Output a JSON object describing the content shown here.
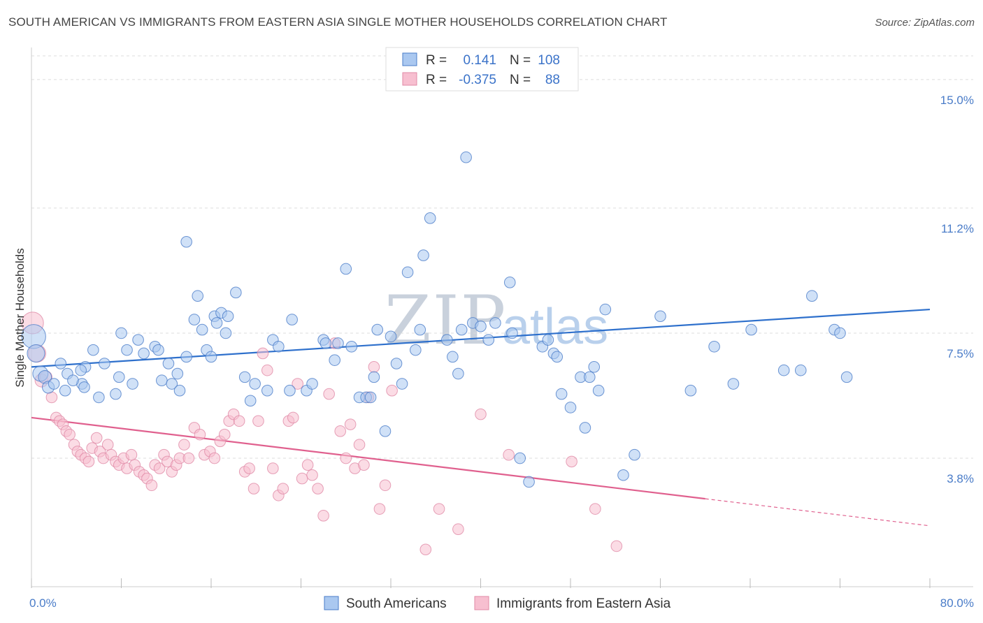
{
  "header": {
    "title": "SOUTH AMERICAN VS IMMIGRANTS FROM EASTERN ASIA SINGLE MOTHER HOUSEHOLDS CORRELATION CHART",
    "source": "Source: ZipAtlas.com"
  },
  "watermark": {
    "part1": "ZIP",
    "part2": "atlas"
  },
  "legend": {
    "r_label": "R =",
    "n_label": "N =",
    "rows": [
      {
        "r": "0.141",
        "n": "108"
      },
      {
        "r": "-0.375",
        "n": "88"
      }
    ]
  },
  "chart_data": {
    "type": "scatter",
    "title": "SOUTH AMERICAN VS IMMIGRANTS FROM EASTERN ASIA SINGLE MOTHER HOUSEHOLDS CORRELATION CHART",
    "xlabel": "",
    "ylabel": "Single Mother Households",
    "xlim": [
      0,
      80
    ],
    "ylim": [
      0,
      15.7
    ],
    "y_ticks": [
      3.8,
      7.5,
      11.2,
      15.0
    ],
    "y_tick_labels": [
      "3.8%",
      "7.5%",
      "11.2%",
      "15.0%"
    ],
    "x_tick_labels": [
      "0.0%",
      "80.0%"
    ],
    "grid": true,
    "legend_position": "top-center",
    "colors": {
      "blue_fill": "#aac8f0",
      "blue_stroke": "#4a7cc8",
      "blue_line": "#2e70cc",
      "pink_fill": "#f7bfd0",
      "pink_stroke": "#e08aa6",
      "pink_line": "#e0608e",
      "tick": "#4a7cc8",
      "grid": "#dddddd"
    },
    "series": [
      {
        "name": "South Americans",
        "trend": {
          "x0": 0,
          "y0": 6.5,
          "x1": 80,
          "y1": 8.2
        },
        "points": [
          [
            0.2,
            7.4,
            22
          ],
          [
            0.4,
            6.9,
            16
          ],
          [
            0.8,
            6.3,
            14
          ],
          [
            1.2,
            6.2,
            12
          ],
          [
            1.5,
            5.9,
            11
          ],
          [
            2.0,
            6.0,
            10
          ],
          [
            2.6,
            6.6,
            10
          ],
          [
            3.0,
            5.8,
            10
          ],
          [
            3.2,
            6.3,
            10
          ],
          [
            4.5,
            6.0,
            10
          ],
          [
            4.7,
            5.9,
            10
          ],
          [
            3.7,
            6.1,
            10
          ],
          [
            4.8,
            6.5,
            10
          ],
          [
            4.4,
            6.4,
            10
          ],
          [
            6.0,
            5.6,
            10
          ],
          [
            5.5,
            7.0,
            10
          ],
          [
            6.5,
            6.6,
            10
          ],
          [
            7.8,
            6.2,
            10
          ],
          [
            8.0,
            7.5,
            10
          ],
          [
            7.5,
            5.7,
            10
          ],
          [
            9.0,
            6.0,
            10
          ],
          [
            9.5,
            7.3,
            10
          ],
          [
            8.5,
            7.0,
            10
          ],
          [
            10.0,
            6.9,
            10
          ],
          [
            11.0,
            7.1,
            10
          ],
          [
            11.3,
            7.0,
            10
          ],
          [
            11.6,
            6.1,
            10
          ],
          [
            12.2,
            6.6,
            10
          ],
          [
            12.5,
            6.0,
            10
          ],
          [
            13.0,
            6.3,
            10
          ],
          [
            13.2,
            5.8,
            10
          ],
          [
            13.8,
            6.8,
            10
          ],
          [
            14.8,
            8.6,
            10
          ],
          [
            14.5,
            7.9,
            10
          ],
          [
            15.2,
            7.6,
            10
          ],
          [
            15.6,
            7.0,
            10
          ],
          [
            16.0,
            6.8,
            10
          ],
          [
            16.3,
            8.0,
            10
          ],
          [
            16.5,
            7.8,
            10
          ],
          [
            16.9,
            8.1,
            10
          ],
          [
            17.3,
            7.5,
            10
          ],
          [
            17.5,
            8.0,
            10
          ],
          [
            18.2,
            8.7,
            10
          ],
          [
            13.8,
            10.2,
            10
          ],
          [
            19.0,
            6.2,
            10
          ],
          [
            19.5,
            5.5,
            10
          ],
          [
            19.9,
            6.0,
            10
          ],
          [
            21.0,
            5.8,
            10
          ],
          [
            21.5,
            7.3,
            10
          ],
          [
            22.0,
            7.1,
            10
          ],
          [
            23.0,
            5.8,
            10
          ],
          [
            23.2,
            7.9,
            10
          ],
          [
            24.5,
            5.8,
            10
          ],
          [
            25.0,
            6.0,
            10
          ],
          [
            26.0,
            7.3,
            10
          ],
          [
            26.2,
            7.2,
            10
          ],
          [
            27.0,
            6.7,
            10
          ],
          [
            27.3,
            7.2,
            10
          ],
          [
            28.0,
            9.4,
            10
          ],
          [
            28.5,
            7.1,
            10
          ],
          [
            29.2,
            5.6,
            10
          ],
          [
            29.8,
            5.6,
            10
          ],
          [
            30.2,
            5.6,
            10
          ],
          [
            30.5,
            6.2,
            10
          ],
          [
            30.8,
            7.6,
            10
          ],
          [
            31.5,
            4.6,
            10
          ],
          [
            32.0,
            7.4,
            10
          ],
          [
            32.5,
            6.6,
            10
          ],
          [
            33.0,
            6.0,
            10
          ],
          [
            33.5,
            9.3,
            10
          ],
          [
            34.2,
            7.0,
            10
          ],
          [
            34.9,
            9.8,
            10
          ],
          [
            34.6,
            7.6,
            10
          ],
          [
            35.5,
            10.9,
            10
          ],
          [
            37.0,
            7.3,
            10
          ],
          [
            37.5,
            6.8,
            10
          ],
          [
            38.0,
            6.3,
            10
          ],
          [
            38.3,
            7.6,
            10
          ],
          [
            38.7,
            12.7,
            10
          ],
          [
            39.3,
            7.8,
            10
          ],
          [
            40.0,
            7.7,
            10
          ],
          [
            40.7,
            7.3,
            10
          ],
          [
            41.3,
            7.8,
            10
          ],
          [
            42.6,
            9.0,
            10
          ],
          [
            42.8,
            7.5,
            10
          ],
          [
            43.5,
            3.8,
            10
          ],
          [
            44.3,
            3.1,
            10
          ],
          [
            45.5,
            7.1,
            10
          ],
          [
            46.0,
            7.3,
            10
          ],
          [
            46.5,
            6.9,
            10
          ],
          [
            46.8,
            6.8,
            10
          ],
          [
            47.2,
            5.7,
            10
          ],
          [
            48.0,
            5.3,
            10
          ],
          [
            48.9,
            6.2,
            10
          ],
          [
            49.3,
            4.7,
            10
          ],
          [
            49.7,
            6.2,
            10
          ],
          [
            50.1,
            6.5,
            10
          ],
          [
            50.5,
            5.8,
            10
          ],
          [
            51.1,
            8.2,
            10
          ],
          [
            52.7,
            3.3,
            10
          ],
          [
            53.7,
            3.9,
            10
          ],
          [
            56.0,
            8.0,
            10
          ],
          [
            58.7,
            5.8,
            10
          ],
          [
            60.8,
            7.1,
            10
          ],
          [
            62.5,
            6.0,
            10
          ],
          [
            64.1,
            7.6,
            10
          ],
          [
            67.0,
            6.4,
            10
          ],
          [
            68.5,
            6.4,
            10
          ],
          [
            69.5,
            8.6,
            10
          ],
          [
            71.5,
            7.6,
            10
          ],
          [
            72.0,
            7.5,
            10
          ],
          [
            72.6,
            6.2,
            10
          ]
        ]
      },
      {
        "name": "Immigrants from Eastern Asia",
        "trend": {
          "x0": 0,
          "y0": 5.0,
          "x1": 60,
          "y1": 2.6,
          "dash_x1": 80,
          "dash_y1": 1.8
        },
        "points": [
          [
            0.1,
            7.8,
            20
          ],
          [
            0.5,
            6.9,
            16
          ],
          [
            0.9,
            6.1,
            12
          ],
          [
            1.3,
            6.2,
            11
          ],
          [
            1.8,
            5.6,
            10
          ],
          [
            2.2,
            5.0,
            10
          ],
          [
            2.5,
            4.9,
            10
          ],
          [
            2.8,
            4.8,
            10
          ],
          [
            3.1,
            4.6,
            10
          ],
          [
            3.4,
            4.5,
            10
          ],
          [
            3.8,
            4.2,
            10
          ],
          [
            4.1,
            4.0,
            10
          ],
          [
            4.4,
            3.9,
            10
          ],
          [
            4.8,
            3.8,
            10
          ],
          [
            5.1,
            3.7,
            10
          ],
          [
            5.4,
            4.1,
            10
          ],
          [
            5.8,
            4.4,
            10
          ],
          [
            6.1,
            4.0,
            10
          ],
          [
            6.4,
            3.8,
            10
          ],
          [
            6.8,
            4.2,
            10
          ],
          [
            7.1,
            3.9,
            10
          ],
          [
            7.5,
            3.7,
            10
          ],
          [
            7.8,
            3.6,
            10
          ],
          [
            8.2,
            3.8,
            10
          ],
          [
            8.5,
            3.5,
            10
          ],
          [
            8.9,
            3.9,
            10
          ],
          [
            9.2,
            3.6,
            10
          ],
          [
            9.6,
            3.4,
            10
          ],
          [
            10.0,
            3.3,
            10
          ],
          [
            10.3,
            3.2,
            10
          ],
          [
            10.7,
            3.0,
            10
          ],
          [
            11.0,
            3.6,
            10
          ],
          [
            11.4,
            3.5,
            10
          ],
          [
            11.8,
            3.9,
            10
          ],
          [
            12.1,
            3.7,
            10
          ],
          [
            12.5,
            3.4,
            10
          ],
          [
            12.9,
            3.6,
            10
          ],
          [
            13.2,
            3.8,
            10
          ],
          [
            13.6,
            4.2,
            10
          ],
          [
            14.0,
            3.8,
            10
          ],
          [
            14.5,
            4.7,
            10
          ],
          [
            15.0,
            4.5,
            10
          ],
          [
            15.4,
            3.9,
            10
          ],
          [
            15.9,
            4.0,
            10
          ],
          [
            16.3,
            3.8,
            10
          ],
          [
            16.8,
            4.3,
            10
          ],
          [
            17.2,
            4.5,
            10
          ],
          [
            17.6,
            4.9,
            10
          ],
          [
            18.0,
            5.1,
            10
          ],
          [
            18.5,
            4.9,
            10
          ],
          [
            19.0,
            3.4,
            10
          ],
          [
            19.4,
            3.5,
            10
          ],
          [
            19.8,
            2.9,
            10
          ],
          [
            20.2,
            4.9,
            10
          ],
          [
            20.6,
            6.9,
            10
          ],
          [
            21.0,
            6.4,
            10
          ],
          [
            21.5,
            3.5,
            10
          ],
          [
            22.0,
            2.7,
            10
          ],
          [
            22.4,
            2.9,
            10
          ],
          [
            22.9,
            4.9,
            10
          ],
          [
            23.3,
            5.0,
            10
          ],
          [
            23.7,
            6.0,
            10
          ],
          [
            24.1,
            3.2,
            10
          ],
          [
            24.6,
            3.6,
            10
          ],
          [
            25.0,
            3.3,
            10
          ],
          [
            25.5,
            2.9,
            10
          ],
          [
            26.0,
            2.1,
            10
          ],
          [
            26.5,
            5.7,
            10
          ],
          [
            27.0,
            7.2,
            10
          ],
          [
            27.5,
            4.6,
            10
          ],
          [
            28.0,
            3.8,
            10
          ],
          [
            28.4,
            4.8,
            10
          ],
          [
            28.8,
            3.5,
            10
          ],
          [
            29.2,
            4.2,
            10
          ],
          [
            29.6,
            3.6,
            10
          ],
          [
            30.0,
            5.6,
            10
          ],
          [
            30.5,
            6.5,
            10
          ],
          [
            31.0,
            2.3,
            10
          ],
          [
            31.5,
            3.0,
            10
          ],
          [
            32.1,
            5.8,
            10
          ],
          [
            35.1,
            1.1,
            10
          ],
          [
            36.3,
            2.3,
            10
          ],
          [
            38.0,
            1.7,
            10
          ],
          [
            40.0,
            5.1,
            10
          ],
          [
            42.5,
            3.9,
            10
          ],
          [
            48.1,
            3.7,
            10
          ],
          [
            50.2,
            2.3,
            10
          ],
          [
            52.1,
            1.2,
            10
          ]
        ]
      }
    ]
  },
  "bottom_legend": {
    "items": [
      {
        "label": "South Americans"
      },
      {
        "label": "Immigrants from Eastern Asia"
      }
    ]
  }
}
